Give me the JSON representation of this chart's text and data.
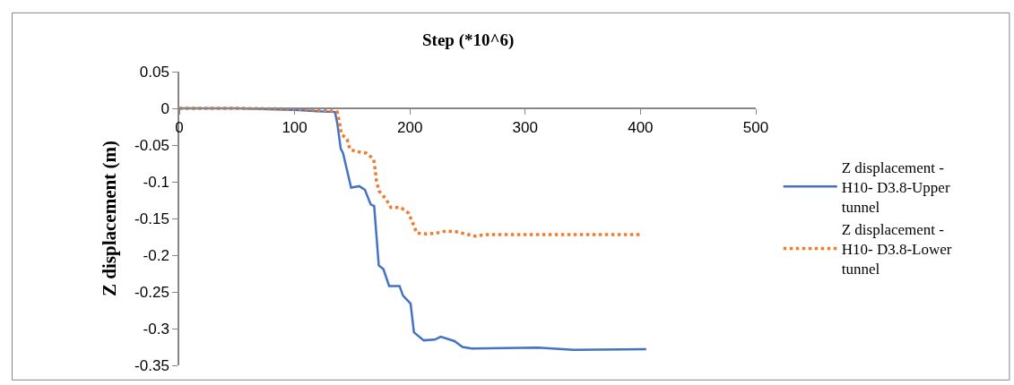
{
  "chart_data": {
    "type": "line",
    "xlabel": "Step (*10^6)",
    "ylabel": "Z displacement (m)",
    "xlim": [
      0,
      500
    ],
    "xticks": [
      0,
      100,
      200,
      300,
      400,
      500
    ],
    "ylim": [
      -0.35,
      0.05
    ],
    "yticks": [
      -0.35,
      -0.3,
      -0.25,
      -0.2,
      -0.15,
      -0.1,
      -0.05,
      0,
      0.05
    ],
    "legend": "right",
    "marker": "none",
    "series": [
      {
        "name": "Z displacement - H10- D3.8-Upper tunnel",
        "color": "#4472c4",
        "line_style": "solid",
        "x": [
          0,
          50,
          100,
          120,
          135,
          137,
          140,
          142,
          149,
          156,
          161,
          166,
          169,
          173,
          177,
          182,
          191,
          194,
          200.6,
          203.5,
          212,
          221.6,
          226.7,
          238.7,
          245.6,
          253.5,
          311,
          342,
          405
        ],
        "values": [
          0,
          0,
          -0.002,
          -0.004,
          -0.005,
          -0.02,
          -0.055,
          -0.061,
          -0.108,
          -0.106,
          -0.111,
          -0.131,
          -0.133,
          -0.214,
          -0.219,
          -0.242,
          -0.242,
          -0.255,
          -0.266,
          -0.305,
          -0.316,
          -0.315,
          -0.311,
          -0.317,
          -0.325,
          -0.327,
          -0.326,
          -0.329,
          -0.328
        ]
      },
      {
        "name": "Z displacement - H10- D3.8-Lower tunnel",
        "color": "#ed7d31",
        "line_style": "dotted",
        "x": [
          0,
          50,
          100,
          130,
          137,
          139,
          140.5,
          145.5,
          148,
          154,
          162,
          168.5,
          170,
          171,
          173.4,
          179,
          183.5,
          192,
          199,
          202.7,
          206,
          214,
          223,
          231.5,
          240,
          248,
          256.6,
          266.5,
          300,
          350,
          401
        ],
        "values": [
          0,
          0,
          -0.001,
          -0.003,
          -0.005,
          -0.02,
          -0.035,
          -0.042,
          -0.056,
          -0.059,
          -0.061,
          -0.069,
          -0.085,
          -0.099,
          -0.113,
          -0.123,
          -0.135,
          -0.135,
          -0.143,
          -0.157,
          -0.17,
          -0.171,
          -0.17,
          -0.167,
          -0.168,
          -0.171,
          -0.174,
          -0.172,
          -0.172,
          -0.172,
          -0.172
        ]
      }
    ]
  }
}
